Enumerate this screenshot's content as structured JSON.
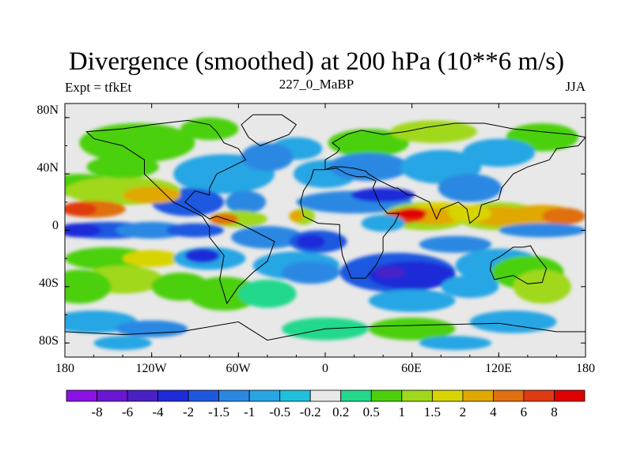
{
  "map": {
    "title": "Divergence (smoothed) at 200 hPa (10**6 m/s)",
    "left_string": "Expt = tfkEt",
    "center_string": "227_0_MaBP",
    "right_string": "JJA",
    "lat_tick_labels": [
      "80N",
      "40N",
      "0",
      "40S",
      "80S"
    ],
    "lon_tick_labels": [
      "180",
      "120W",
      "60W",
      "0",
      "60E",
      "120E",
      "180"
    ],
    "colorbar": {
      "labels": [
        "-8",
        "-6",
        "-4",
        "-2",
        "-1.5",
        "-1",
        "-0.5",
        "-0.2",
        "0.2",
        "0.5",
        "1",
        "1.5",
        "2",
        "4",
        "6",
        "8"
      ],
      "colors": [
        "#8a12e6",
        "#6a16d4",
        "#4a20c6",
        "#1f2ad8",
        "#1f58e0",
        "#2a88e2",
        "#27a6e4",
        "#20c0dc",
        "#e8e8e8",
        "#24d88c",
        "#4cd00c",
        "#a0d81a",
        "#d8d400",
        "#e0a800",
        "#e07010",
        "#e03a10",
        "#e00000"
      ]
    },
    "background_color": "#e8e8e8",
    "coastline_color": "#000000"
  }
}
